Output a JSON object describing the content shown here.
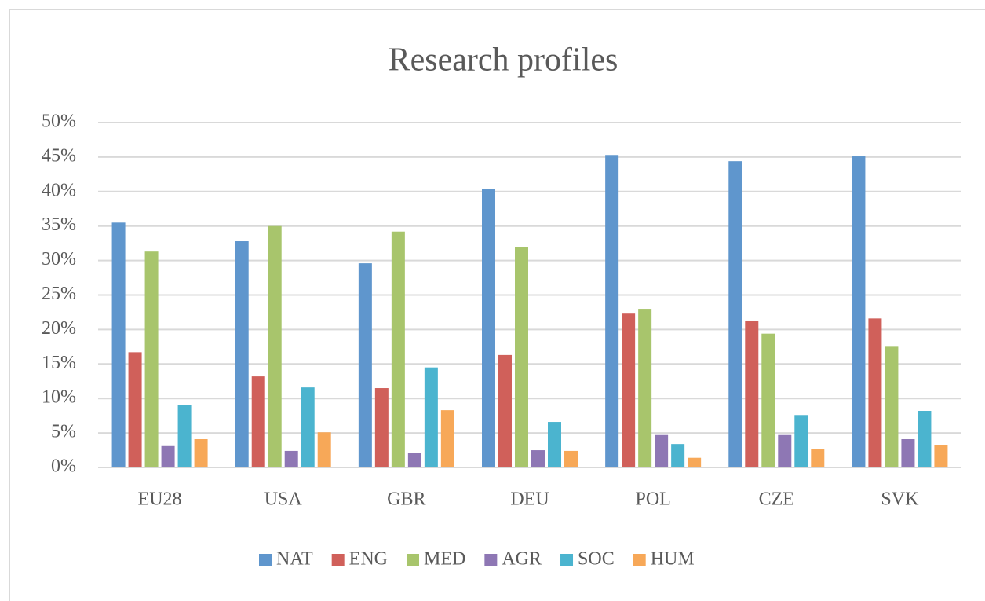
{
  "chart_data": {
    "type": "bar",
    "title": "Research profiles",
    "categories": [
      "EU28",
      "USA",
      "GBR",
      "DEU",
      "POL",
      "CZE",
      "SVK"
    ],
    "series": [
      {
        "name": "NAT",
        "color": "#5f96cd",
        "values": [
          35.5,
          32.8,
          29.6,
          40.4,
          45.3,
          44.4,
          45.1
        ]
      },
      {
        "name": "ENG",
        "color": "#d0605a",
        "values": [
          16.7,
          13.2,
          11.5,
          16.3,
          22.3,
          21.3,
          21.6
        ]
      },
      {
        "name": "MED",
        "color": "#a8c56c",
        "values": [
          31.3,
          35.0,
          34.2,
          31.9,
          23.0,
          19.4,
          17.5
        ]
      },
      {
        "name": "AGR",
        "color": "#8e77b4",
        "values": [
          3.1,
          2.4,
          2.1,
          2.5,
          4.7,
          4.7,
          4.1
        ]
      },
      {
        "name": "SOC",
        "color": "#4bb4cf",
        "values": [
          9.1,
          11.6,
          14.5,
          6.6,
          3.4,
          7.6,
          8.2
        ]
      },
      {
        "name": "HUM",
        "color": "#f7a858",
        "values": [
          4.1,
          5.1,
          8.3,
          2.4,
          1.4,
          2.7,
          3.3
        ]
      }
    ],
    "ylim": [
      0,
      50
    ],
    "yticks": [
      {
        "value": 0,
        "label": "0%"
      },
      {
        "value": 5,
        "label": "5%"
      },
      {
        "value": 10,
        "label": "10%"
      },
      {
        "value": 15,
        "label": "15%"
      },
      {
        "value": 20,
        "label": "20%"
      },
      {
        "value": 25,
        "label": "25%"
      },
      {
        "value": 30,
        "label": "30%"
      },
      {
        "value": 35,
        "label": "35%"
      },
      {
        "value": 40,
        "label": "40%"
      },
      {
        "value": 45,
        "label": "45%"
      },
      {
        "value": 50,
        "label": "50%"
      }
    ],
    "grid": true,
    "legend": "bottom"
  }
}
